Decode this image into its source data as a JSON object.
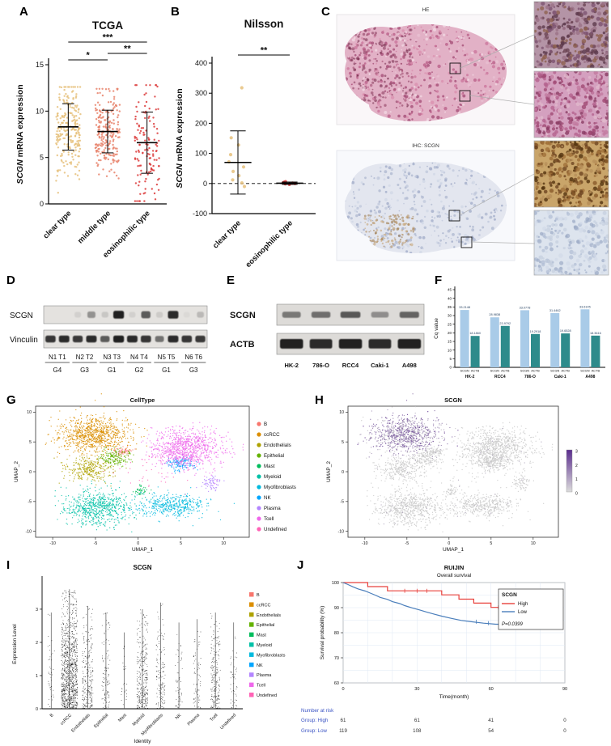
{
  "panels": {
    "a": "A",
    "b": "B",
    "c": "C",
    "d": "D",
    "e": "E",
    "f": "F",
    "g": "G",
    "h": "H",
    "i": "I",
    "j": "J"
  },
  "panelC": {
    "he_label": "HE",
    "ihc_label": "IHC: SCGN"
  },
  "westernD": {
    "rows": [
      {
        "label": "SCGN"
      },
      {
        "label": "Vinculin"
      }
    ],
    "intensities": {
      "SCGN": [
        0.0,
        0.0,
        0.08,
        0.4,
        0.12,
        0.95,
        0.08,
        0.65,
        0.1,
        0.9,
        0.04,
        0.18
      ],
      "Vinculin": [
        0.85,
        0.9,
        0.8,
        0.9,
        0.65,
        0.95,
        0.9,
        0.85,
        0.55,
        0.9,
        0.85,
        0.8
      ]
    },
    "lanes": [
      {
        "pair": "N1 T1",
        "grade": "G4"
      },
      {
        "pair": "N2 T2",
        "grade": "G3"
      },
      {
        "pair": "N3 T3",
        "grade": "G1"
      },
      {
        "pair": "N4 T4",
        "grade": "G2"
      },
      {
        "pair": "N5 T5",
        "grade": "G1"
      },
      {
        "pair": "N6 T6",
        "grade": "G3"
      }
    ],
    "strip_bg": "#e4e2df",
    "band_color": "#141414"
  },
  "westernE": {
    "rows": [
      {
        "label": "SCGN"
      },
      {
        "label": "ACTB"
      }
    ],
    "intensities": {
      "SCGN": [
        0.5,
        0.55,
        0.65,
        0.4,
        0.6
      ],
      "ACTB": [
        0.95,
        0.9,
        0.95,
        0.9,
        0.95
      ]
    },
    "lanes": [
      "HK-2",
      "786-O",
      "RCC4",
      "Caki-1",
      "A498"
    ],
    "strip_bg": "#dddbd8",
    "band_color": "#141414"
  },
  "chart_data": [
    {
      "id": "A",
      "type": "scatter",
      "title": "TCGA",
      "ylabel_gene": "SCGN",
      "ylabel_rest": " mRNA expression",
      "ylim": [
        0,
        15
      ],
      "yticks": [
        0,
        5,
        10,
        15
      ],
      "categories": [
        "clear type",
        "middle type",
        "eosinophilic type"
      ],
      "colors": [
        "#E6C17C",
        "#E8826B",
        "#DC3B3B"
      ],
      "groups": [
        {
          "mean": 8.3,
          "sd": 2.5,
          "n": 240,
          "min": 1.2,
          "max": 12.6
        },
        {
          "mean": 7.8,
          "sd": 2.3,
          "n": 220,
          "min": 1.8,
          "max": 12.4
        },
        {
          "mean": 6.6,
          "sd": 3.3,
          "n": 130,
          "min": 0.3,
          "max": 12.8
        }
      ],
      "significance": [
        {
          "i": 0,
          "j": 2,
          "label": "***",
          "y": 46
        },
        {
          "i": 0,
          "j": 1,
          "label": "*",
          "y": 68
        },
        {
          "i": 1,
          "j": 2,
          "label": "**",
          "y": 60
        }
      ]
    },
    {
      "id": "B",
      "type": "scatter",
      "title": "Nilsson",
      "ylabel_gene": "SCGN",
      "ylabel_rest": " mRNA expression",
      "ylim": [
        -100,
        400
      ],
      "yticks": [
        -100,
        0,
        100,
        200,
        300,
        400
      ],
      "categories": [
        "clear type",
        "eosinophilic type"
      ],
      "colors": [
        "#E6C17C",
        "#DC3B3B"
      ],
      "values": [
        [
          318,
          152,
          128,
          96,
          72,
          55,
          40,
          26,
          12,
          2,
          -10
        ],
        [
          6,
          4,
          2,
          1,
          0,
          -1,
          -3
        ]
      ],
      "means": [
        70,
        1
      ],
      "sds": [
        105,
        4
      ],
      "significance": [
        {
          "i": 0,
          "j": 1,
          "label": "**",
          "y": 62
        }
      ],
      "zero_line_dashed": true
    },
    {
      "id": "F",
      "type": "bar",
      "ylabel": "Cq value",
      "ylim": [
        0,
        45
      ],
      "yticks": [
        0,
        5,
        10,
        15,
        20,
        25,
        30,
        35,
        40,
        45
      ],
      "cell_lines": [
        "HK-2",
        "RCC4",
        "786-O",
        "Caki-1",
        "A498"
      ],
      "series": [
        {
          "name": "SCGN",
          "color": "#A9CBE8",
          "values": [
            33.2148,
            28.9838,
            33.0778,
            31.4462,
            33.6145
          ]
        },
        {
          "name": "ACTB",
          "color": "#2E8B8B",
          "values": [
            18.186,
            23.9792,
            19.2918,
            19.6528,
            18.3616
          ]
        }
      ]
    },
    {
      "id": "G",
      "type": "scatter",
      "title": "CellType",
      "xlabel": "UMAP_1",
      "ylabel": "UMAP_2",
      "xlim": [
        -12,
        13
      ],
      "ylim": [
        -11,
        11
      ],
      "xticks": [
        -10,
        -5,
        0,
        5,
        10
      ],
      "yticks": [
        -10,
        -5,
        0,
        5,
        10
      ],
      "legend": [
        "B",
        "ccRCC",
        "Endothelials",
        "Epithelial",
        "Mast",
        "Myeloid",
        "Myofibroblasts",
        "NK",
        "Plasma",
        "Tcell",
        "Undefined"
      ],
      "colors": [
        "#F8766D",
        "#DB8E00",
        "#AEA200",
        "#64B200",
        "#00BD5C",
        "#00C1A7",
        "#00BADE",
        "#00A6FF",
        "#B385FF",
        "#EF67EB",
        "#FF63B6"
      ],
      "clusters": [
        {
          "name": "B",
          "cx": -1.7,
          "cy": 3.4,
          "sx": 0.5,
          "sy": 0.4,
          "n": 60
        },
        {
          "name": "ccRCC",
          "cx": -5.2,
          "cy": 6.2,
          "sx": 2.1,
          "sy": 1.5,
          "n": 900
        },
        {
          "name": "Endothelials",
          "cx": -5.6,
          "cy": 0.4,
          "sx": 1.3,
          "sy": 1.0,
          "n": 300
        },
        {
          "name": "Epithelial",
          "cx": -2.7,
          "cy": 2.3,
          "sx": 0.9,
          "sy": 0.7,
          "n": 170
        },
        {
          "name": "Mast",
          "cx": 0.3,
          "cy": -3.1,
          "sx": 0.45,
          "sy": 0.4,
          "n": 45
        },
        {
          "name": "Myeloid",
          "cx": -4.7,
          "cy": -5.9,
          "sx": 1.9,
          "sy": 1.5,
          "n": 700
        },
        {
          "name": "Myofibroblasts",
          "cx": 3.9,
          "cy": -5.7,
          "sx": 2.2,
          "sy": 0.95,
          "n": 450
        },
        {
          "name": "NK",
          "cx": 4.9,
          "cy": 1.4,
          "sx": 0.85,
          "sy": 0.6,
          "n": 140
        },
        {
          "name": "Plasma",
          "cx": 8.7,
          "cy": -1.9,
          "sx": 0.5,
          "sy": 0.5,
          "n": 70
        },
        {
          "name": "Tcell",
          "cx": 5.7,
          "cy": 3.9,
          "sx": 2.1,
          "sy": 1.7,
          "n": 950
        },
        {
          "name": "Undefined",
          "cx": 1.4,
          "cy": 0.3,
          "sx": 2.6,
          "sy": 1.8,
          "n": 40
        }
      ]
    },
    {
      "id": "H",
      "type": "scatter",
      "title": "SCGN",
      "xlabel": "UMAP_1",
      "ylabel": "UMAP_2",
      "scale_ticks": [
        3,
        2,
        1,
        0
      ],
      "high_color": "#5B2D8E",
      "low_color": "#C9C9C9",
      "expressing_cluster": "ccRCC"
    },
    {
      "id": "I",
      "type": "violin-jitter",
      "title": "SCGN",
      "ylabel": "Expression Level",
      "xlabel": "Identity",
      "ylim": [
        0,
        3.9
      ],
      "yticks": [
        0,
        1,
        2,
        3
      ],
      "categories": [
        "B",
        "ccRCC",
        "Endothelials",
        "Epithelial",
        "Mast",
        "Myeloid",
        "Myofibroblasts",
        "NK",
        "Plasma",
        "Tcell",
        "Undefined"
      ],
      "params": [
        {
          "n": 40,
          "max": 2.9
        },
        {
          "n": 1000,
          "max": 3.6
        },
        {
          "n": 260,
          "max": 3.1
        },
        {
          "n": 110,
          "max": 2.9
        },
        {
          "n": 25,
          "max": 2.3
        },
        {
          "n": 300,
          "max": 3.0
        },
        {
          "n": 140,
          "max": 3.2
        },
        {
          "n": 55,
          "max": 2.6
        },
        {
          "n": 70,
          "max": 2.7
        },
        {
          "n": 200,
          "max": 2.9
        },
        {
          "n": 50,
          "max": 2.6
        }
      ]
    },
    {
      "id": "J",
      "type": "line",
      "title": "RUIJIN",
      "subtitle": "Overall survival",
      "xlabel": "Time(month)",
      "ylabel": "Survival probability (%)",
      "xlim": [
        0,
        90
      ],
      "ylim": [
        60,
        100
      ],
      "xticks": [
        0,
        30,
        60,
        90
      ],
      "yticks": [
        60,
        70,
        80,
        90,
        100
      ],
      "legend_title": "SCGN",
      "pvalue": "P=0.0399",
      "series": [
        {
          "name": "High",
          "color": "#E8413C",
          "steps": [
            [
              0,
              100
            ],
            [
              10,
              100
            ],
            [
              10,
              98.4
            ],
            [
              18,
              98.4
            ],
            [
              18,
              96.7
            ],
            [
              40,
              96.7
            ],
            [
              40,
              95.1
            ],
            [
              47,
              95.1
            ],
            [
              47,
              93.4
            ],
            [
              53,
              93.4
            ],
            [
              53,
              91.8
            ],
            [
              60,
              91.8
            ],
            [
              60,
              90.1
            ],
            [
              86,
              90.1
            ]
          ],
          "censors": [
            [
              25,
              96.7
            ],
            [
              30,
              96.7
            ],
            [
              34,
              96.7
            ],
            [
              63,
              90.1
            ],
            [
              66,
              90.1
            ],
            [
              70,
              90.1
            ],
            [
              74,
              90.1
            ],
            [
              78,
              90.1
            ],
            [
              82,
              90.1
            ]
          ]
        },
        {
          "name": "Low",
          "color": "#4A7EBB",
          "steps": [
            [
              0,
              100
            ],
            [
              2,
              99.2
            ],
            [
              4,
              98.3
            ],
            [
              6,
              97.5
            ],
            [
              9,
              96.6
            ],
            [
              11,
              95.8
            ],
            [
              13,
              95.0
            ],
            [
              15,
              94.1
            ],
            [
              18,
              93.3
            ],
            [
              20,
              92.4
            ],
            [
              23,
              91.6
            ],
            [
              25,
              90.8
            ],
            [
              28,
              89.9
            ],
            [
              31,
              89.1
            ],
            [
              34,
              88.2
            ],
            [
              37,
              87.4
            ],
            [
              40,
              86.6
            ],
            [
              44,
              85.7
            ],
            [
              48,
              84.9
            ],
            [
              52,
              84.4
            ],
            [
              57,
              83.8
            ],
            [
              62,
              83.4
            ],
            [
              86,
              83.4
            ]
          ],
          "censors": [
            [
              54,
              84.4
            ],
            [
              59,
              83.8
            ],
            [
              64,
              83.4
            ],
            [
              68,
              83.4
            ],
            [
              72,
              83.4
            ],
            [
              76,
              83.4
            ],
            [
              80,
              83.4
            ],
            [
              84,
              83.4
            ]
          ]
        }
      ],
      "risk_table": {
        "header": "Number at risk",
        "times": [
          0,
          30,
          60,
          90
        ],
        "rows": [
          {
            "label": "Group: High",
            "values": [
              61,
              61,
              41,
              0
            ]
          },
          {
            "label": "Group: Low",
            "values": [
              119,
              108,
              54,
              0
            ]
          }
        ],
        "label_color": "#3B54C4"
      }
    }
  ]
}
